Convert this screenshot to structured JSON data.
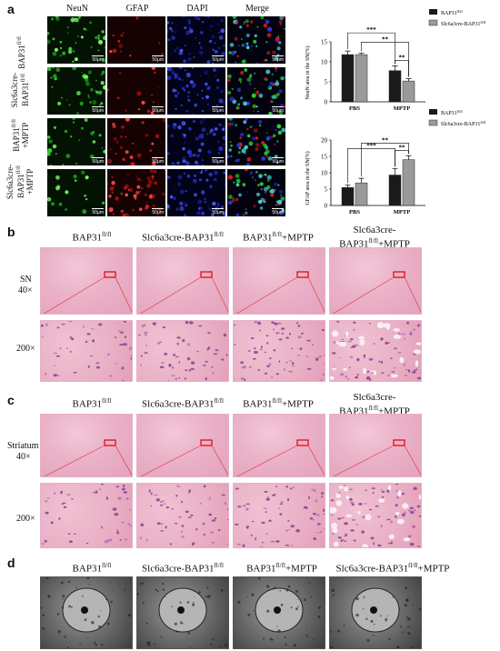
{
  "panels": {
    "a": "a",
    "b": "b",
    "c": "c",
    "d": "d"
  },
  "panel_a": {
    "columns": [
      "NeuN",
      "GFAP",
      "DAPI",
      "Merge"
    ],
    "rows": [
      {
        "line1": "",
        "line2": "BAP31",
        "sup": "fl/fl"
      },
      {
        "line1": "Slc6a3cre-",
        "line2": "BAP31",
        "sup": "fl/fl"
      },
      {
        "line1": "BAP31",
        "line2": "+MPTP",
        "sup": "fl/fl"
      },
      {
        "line1": "Slc6a3cre-",
        "line2": "BAP31",
        "sup": "fl/fl",
        "line3": "+MPTP"
      }
    ],
    "scale_label": "50μm"
  },
  "panel_bc_columns": [
    {
      "base": "BAP31",
      "sup": "fl/fl",
      "tail": ""
    },
    {
      "base": "Slc6a3cre-BAP31",
      "sup": "fl/fl",
      "tail": ""
    },
    {
      "base": "BAP31",
      "sup": "fl/fl",
      "tail": "+MPTP"
    },
    {
      "base": "Slc6a3cre-",
      "base2": "BAP31",
      "sup": "fl/fl",
      "tail": "+MPTP"
    }
  ],
  "panel_b": {
    "row1": "SN",
    "row1b": "40×",
    "row2": "200×"
  },
  "panel_c": {
    "row1": "Striatum",
    "row1b": "40×",
    "row2": "200×"
  },
  "panel_d": {
    "columns": [
      {
        "base": "BAP31",
        "sup": "fl/fl",
        "tail": ""
      },
      {
        "base": "Slc6a3cre-BAP31",
        "sup": "fl/fl",
        "tail": ""
      },
      {
        "base": "BAP31",
        "sup": "fl/fl",
        "tail": "+MPTP"
      },
      {
        "base": "Slc6a3cre-BAP31",
        "sup": "fl/fl",
        "tail": "+MPTP"
      }
    ]
  },
  "chart_data": [
    {
      "type": "bar",
      "categories": [
        "PBS",
        "MPTP"
      ],
      "series": [
        {
          "name": "BAP31fl/fl",
          "values": [
            11.8,
            7.8
          ],
          "errors": [
            0.9,
            1.2
          ],
          "color": "#1a1a1a"
        },
        {
          "name": "Slc6a3cre-BAP31fl/fl",
          "values": [
            11.8,
            5.2
          ],
          "errors": [
            0.4,
            0.6
          ],
          "color": "#9a9a9a"
        }
      ],
      "ylabel": "NeuN area in the SN(%)",
      "ylim": [
        0,
        15
      ],
      "yticks": [
        0,
        5,
        10,
        15
      ],
      "legend": [
        {
          "base": "BAP31",
          "sup": "fl/fl"
        },
        {
          "base": "Slc6a3cre-BAP31",
          "sup": "fl/fl"
        }
      ],
      "significance": [
        "**",
        "***",
        "**"
      ]
    },
    {
      "type": "bar",
      "categories": [
        "PBS",
        "MPTP"
      ],
      "series": [
        {
          "name": "BAP31fl/fl",
          "values": [
            5.5,
            9.3
          ],
          "errors": [
            0.8,
            2.0
          ],
          "color": "#1a1a1a"
        },
        {
          "name": "Slc6a3cre-BAP31fl/fl",
          "values": [
            6.9,
            14.0
          ],
          "errors": [
            1.4,
            1.2
          ],
          "color": "#9a9a9a"
        }
      ],
      "ylabel": "GFAP area in the SN(%)",
      "ylim": [
        0,
        20
      ],
      "yticks": [
        0,
        5,
        10,
        15,
        20
      ],
      "legend": [
        {
          "base": "BAP31",
          "sup": "fl/fl"
        },
        {
          "base": "Slc6a3cre-BAP31",
          "sup": "fl/fl"
        }
      ],
      "significance": [
        "***",
        "**",
        "**"
      ]
    }
  ]
}
